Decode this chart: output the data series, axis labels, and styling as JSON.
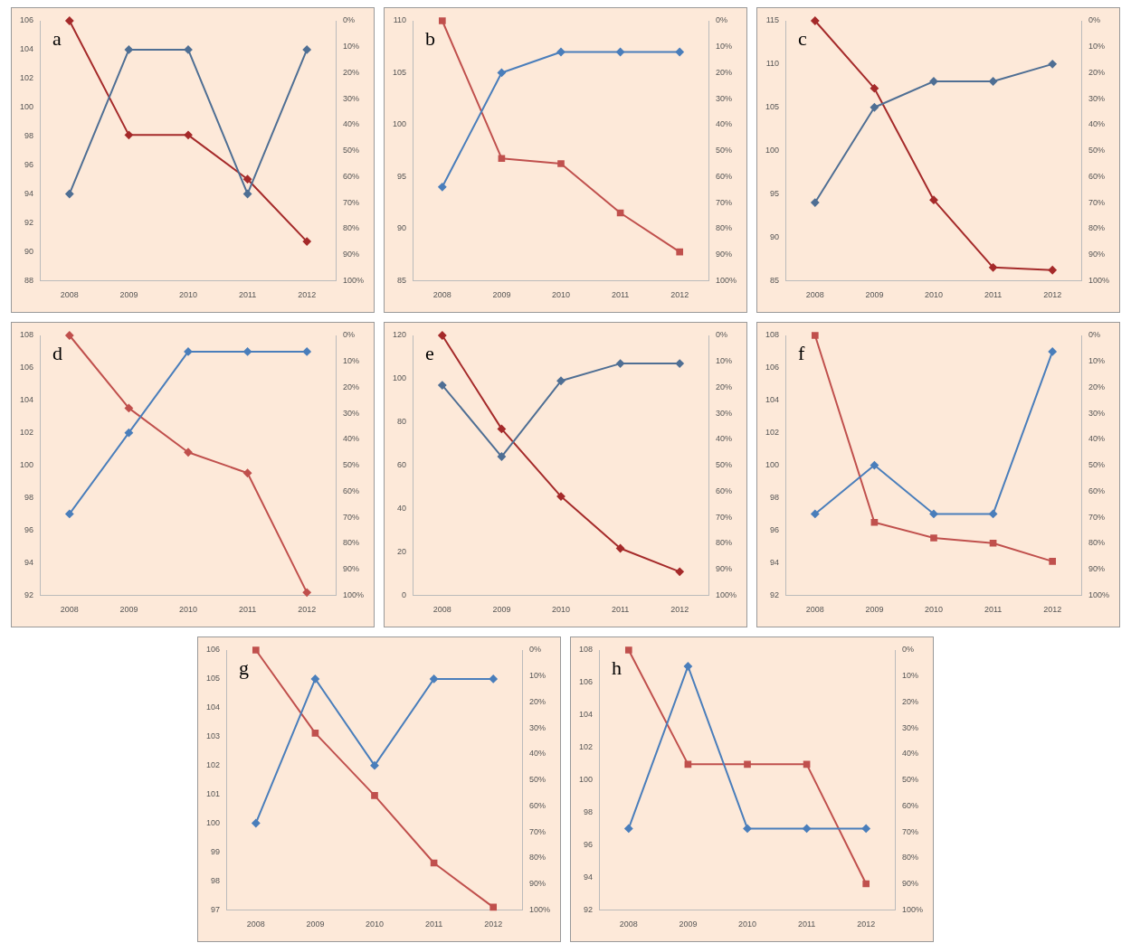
{
  "chart_data": [
    {
      "type": "line",
      "annotations": [
        "a"
      ],
      "categories": [
        "2008",
        "2009",
        "2010",
        "2011",
        "2012"
      ],
      "legend": false,
      "grid": false,
      "ylim": [
        88,
        106
      ],
      "yticks": [
        88,
        90,
        92,
        94,
        96,
        98,
        100,
        102,
        104,
        106
      ],
      "y2lim": [
        100,
        0
      ],
      "y2ticks": [
        {
          "value": 0,
          "label": "0%"
        },
        {
          "value": 10,
          "label": "10%"
        },
        {
          "value": 20,
          "label": "20%"
        },
        {
          "value": 30,
          "label": "30%"
        },
        {
          "value": 40,
          "label": "40%"
        },
        {
          "value": 50,
          "label": "50%"
        },
        {
          "value": 60,
          "label": "60%"
        },
        {
          "value": 70,
          "label": "70%"
        },
        {
          "value": 80,
          "label": "80%"
        },
        {
          "value": 90,
          "label": "90%"
        },
        {
          "value": 100,
          "label": "100%"
        }
      ],
      "series": [
        {
          "color": "#4f6f94",
          "marker": "diamond",
          "values": [
            94,
            104,
            104,
            94,
            104
          ]
        },
        {
          "color": "#a52a2a",
          "marker": "diamond",
          "axis": "y2",
          "values": [
            0,
            44,
            44,
            61,
            85
          ]
        }
      ]
    },
    {
      "type": "line",
      "annotations": [
        "b"
      ],
      "categories": [
        "2008",
        "2009",
        "2010",
        "2011",
        "2012"
      ],
      "legend": false,
      "grid": false,
      "ylim": [
        85,
        110
      ],
      "yticks": [
        85,
        90,
        95,
        100,
        105,
        110
      ],
      "y2lim": [
        100,
        0
      ],
      "y2ticks": [
        {
          "value": 0,
          "label": "0%"
        },
        {
          "value": 10,
          "label": "10%"
        },
        {
          "value": 20,
          "label": "20%"
        },
        {
          "value": 30,
          "label": "30%"
        },
        {
          "value": 40,
          "label": "40%"
        },
        {
          "value": 50,
          "label": "50%"
        },
        {
          "value": 60,
          "label": "60%"
        },
        {
          "value": 70,
          "label": "70%"
        },
        {
          "value": 80,
          "label": "80%"
        },
        {
          "value": 90,
          "label": "90%"
        },
        {
          "value": 100,
          "label": "100%"
        }
      ],
      "series": [
        {
          "color": "#4a7ebb",
          "marker": "diamond",
          "values": [
            94,
            105,
            107,
            107,
            107
          ]
        },
        {
          "color": "#c0504d",
          "marker": "square",
          "axis": "y2",
          "values": [
            0,
            53,
            55,
            74,
            89
          ]
        }
      ]
    },
    {
      "type": "line",
      "annotations": [
        "c"
      ],
      "categories": [
        "2008",
        "2009",
        "2010",
        "2011",
        "2012"
      ],
      "legend": false,
      "grid": false,
      "ylim": [
        85,
        115
      ],
      "yticks": [
        85,
        90,
        95,
        100,
        105,
        110,
        115
      ],
      "y2lim": [
        100,
        0
      ],
      "y2ticks": [
        {
          "value": 0,
          "label": "0%"
        },
        {
          "value": 10,
          "label": "10%"
        },
        {
          "value": 20,
          "label": "20%"
        },
        {
          "value": 30,
          "label": "30%"
        },
        {
          "value": 40,
          "label": "40%"
        },
        {
          "value": 50,
          "label": "50%"
        },
        {
          "value": 60,
          "label": "60%"
        },
        {
          "value": 70,
          "label": "70%"
        },
        {
          "value": 80,
          "label": "80%"
        },
        {
          "value": 90,
          "label": "90%"
        },
        {
          "value": 100,
          "label": "100%"
        }
      ],
      "series": [
        {
          "color": "#4f6f94",
          "marker": "diamond",
          "values": [
            94,
            105,
            108,
            108,
            110
          ]
        },
        {
          "color": "#a52a2a",
          "marker": "diamond",
          "axis": "y2",
          "values": [
            0,
            26,
            69,
            95,
            96
          ]
        }
      ]
    },
    {
      "type": "line",
      "annotations": [
        "d"
      ],
      "categories": [
        "2008",
        "2009",
        "2010",
        "2011",
        "2012"
      ],
      "legend": false,
      "grid": false,
      "ylim": [
        92,
        108
      ],
      "yticks": [
        92,
        94,
        96,
        98,
        100,
        102,
        104,
        106,
        108
      ],
      "y2lim": [
        100,
        0
      ],
      "y2ticks": [
        {
          "value": 0,
          "label": "0%"
        },
        {
          "value": 10,
          "label": "10%"
        },
        {
          "value": 20,
          "label": "20%"
        },
        {
          "value": 30,
          "label": "30%"
        },
        {
          "value": 40,
          "label": "40%"
        },
        {
          "value": 50,
          "label": "50%"
        },
        {
          "value": 60,
          "label": "60%"
        },
        {
          "value": 70,
          "label": "70%"
        },
        {
          "value": 80,
          "label": "80%"
        },
        {
          "value": 90,
          "label": "90%"
        },
        {
          "value": 100,
          "label": "100%"
        }
      ],
      "series": [
        {
          "color": "#4a7ebb",
          "marker": "diamond",
          "values": [
            97,
            102,
            107,
            107,
            107
          ]
        },
        {
          "color": "#c0504d",
          "marker": "diamond",
          "axis": "y2",
          "values": [
            0,
            28,
            45,
            53,
            99
          ]
        }
      ]
    },
    {
      "type": "line",
      "annotations": [
        "e"
      ],
      "categories": [
        "2008",
        "2009",
        "2010",
        "2011",
        "2012"
      ],
      "legend": false,
      "grid": false,
      "ylim": [
        0,
        120
      ],
      "yticks": [
        0,
        20,
        40,
        60,
        80,
        100,
        120
      ],
      "y2lim": [
        100,
        0
      ],
      "y2ticks": [
        {
          "value": 0,
          "label": "0%"
        },
        {
          "value": 10,
          "label": "10%"
        },
        {
          "value": 20,
          "label": "20%"
        },
        {
          "value": 30,
          "label": "30%"
        },
        {
          "value": 40,
          "label": "40%"
        },
        {
          "value": 50,
          "label": "50%"
        },
        {
          "value": 60,
          "label": "60%"
        },
        {
          "value": 70,
          "label": "70%"
        },
        {
          "value": 80,
          "label": "80%"
        },
        {
          "value": 90,
          "label": "90%"
        },
        {
          "value": 100,
          "label": "100%"
        }
      ],
      "series": [
        {
          "color": "#4f6f94",
          "marker": "diamond",
          "values": [
            97,
            64,
            99,
            107,
            107
          ]
        },
        {
          "color": "#a52a2a",
          "marker": "diamond",
          "axis": "y2",
          "values": [
            0,
            36,
            62,
            82,
            91
          ]
        }
      ]
    },
    {
      "type": "line",
      "annotations": [
        "f"
      ],
      "categories": [
        "2008",
        "2009",
        "2010",
        "2011",
        "2012"
      ],
      "legend": false,
      "grid": false,
      "ylim": [
        92,
        108
      ],
      "yticks": [
        92,
        94,
        96,
        98,
        100,
        102,
        104,
        106,
        108
      ],
      "y2lim": [
        100,
        0
      ],
      "y2ticks": [
        {
          "value": 0,
          "label": "0%"
        },
        {
          "value": 10,
          "label": "10%"
        },
        {
          "value": 20,
          "label": "20%"
        },
        {
          "value": 30,
          "label": "30%"
        },
        {
          "value": 40,
          "label": "40%"
        },
        {
          "value": 50,
          "label": "50%"
        },
        {
          "value": 60,
          "label": "60%"
        },
        {
          "value": 70,
          "label": "70%"
        },
        {
          "value": 80,
          "label": "80%"
        },
        {
          "value": 90,
          "label": "90%"
        },
        {
          "value": 100,
          "label": "100%"
        }
      ],
      "series": [
        {
          "color": "#4a7ebb",
          "marker": "diamond",
          "values": [
            97,
            100,
            97,
            97,
            107
          ]
        },
        {
          "color": "#c0504d",
          "marker": "square",
          "axis": "y2",
          "values": [
            0,
            72,
            78,
            80,
            87
          ]
        }
      ]
    },
    {
      "type": "line",
      "annotations": [
        "g"
      ],
      "categories": [
        "2008",
        "2009",
        "2010",
        "2011",
        "2012"
      ],
      "legend": false,
      "grid": false,
      "ylim": [
        97,
        106
      ],
      "yticks": [
        97,
        98,
        99,
        100,
        101,
        102,
        103,
        104,
        105,
        106
      ],
      "y2lim": [
        100,
        0
      ],
      "y2ticks": [
        {
          "value": 0,
          "label": "0%"
        },
        {
          "value": 10,
          "label": "10%"
        },
        {
          "value": 20,
          "label": "20%"
        },
        {
          "value": 30,
          "label": "30%"
        },
        {
          "value": 40,
          "label": "40%"
        },
        {
          "value": 50,
          "label": "50%"
        },
        {
          "value": 60,
          "label": "60%"
        },
        {
          "value": 70,
          "label": "70%"
        },
        {
          "value": 80,
          "label": "80%"
        },
        {
          "value": 90,
          "label": "90%"
        },
        {
          "value": 100,
          "label": "100%"
        }
      ],
      "series": [
        {
          "color": "#4a7ebb",
          "marker": "diamond",
          "values": [
            100,
            105,
            102,
            105,
            105
          ]
        },
        {
          "color": "#c0504d",
          "marker": "square",
          "axis": "y2",
          "values": [
            0,
            32,
            56,
            82,
            99
          ]
        }
      ]
    },
    {
      "type": "line",
      "annotations": [
        "h"
      ],
      "categories": [
        "2008",
        "2009",
        "2010",
        "2011",
        "2012"
      ],
      "legend": false,
      "grid": false,
      "ylim": [
        92,
        108
      ],
      "yticks": [
        92,
        94,
        96,
        98,
        100,
        102,
        104,
        106,
        108
      ],
      "y2lim": [
        100,
        0
      ],
      "y2ticks": [
        {
          "value": 0,
          "label": "0%"
        },
        {
          "value": 10,
          "label": "10%"
        },
        {
          "value": 20,
          "label": "20%"
        },
        {
          "value": 30,
          "label": "30%"
        },
        {
          "value": 40,
          "label": "40%"
        },
        {
          "value": 50,
          "label": "50%"
        },
        {
          "value": 60,
          "label": "60%"
        },
        {
          "value": 70,
          "label": "70%"
        },
        {
          "value": 80,
          "label": "80%"
        },
        {
          "value": 90,
          "label": "90%"
        },
        {
          "value": 100,
          "label": "100%"
        }
      ],
      "series": [
        {
          "color": "#4a7ebb",
          "marker": "diamond",
          "values": [
            97,
            107,
            97,
            97,
            97
          ]
        },
        {
          "color": "#c0504d",
          "marker": "square",
          "axis": "y2",
          "values": [
            0,
            44,
            44,
            44,
            90
          ]
        }
      ]
    }
  ]
}
